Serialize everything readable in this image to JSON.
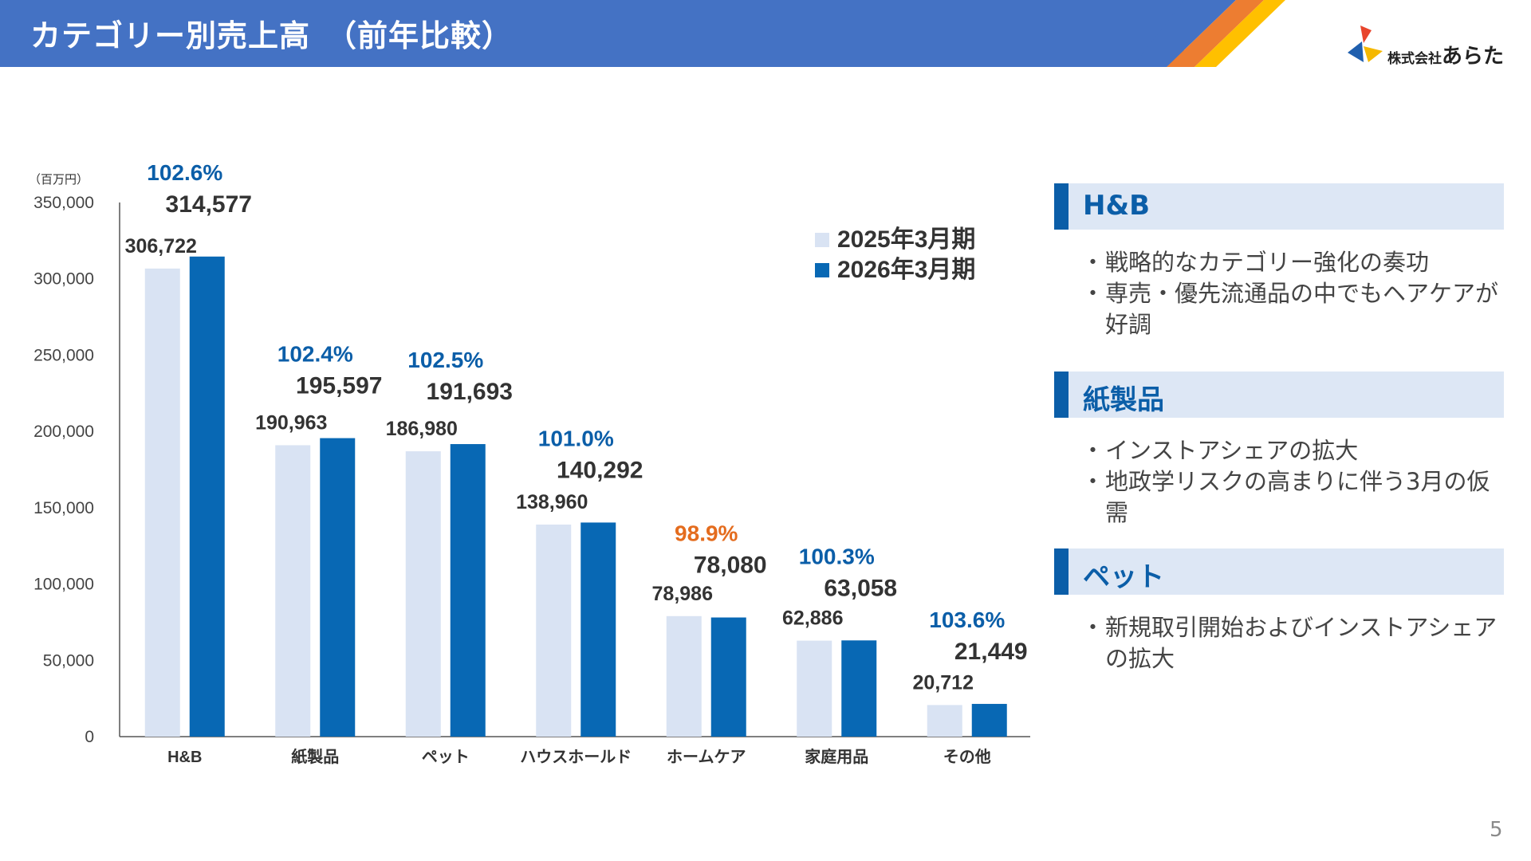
{
  "header": {
    "title": "カテゴリー別売上高　（前年比較）",
    "bar_color": "#4472c4",
    "stripe_colors": [
      "#ed7d31",
      "#ffc000"
    ]
  },
  "logo": {
    "prefix": "株式会社",
    "name": "あらた",
    "colors": [
      "#1f5fae",
      "#f5b800",
      "#e8452c"
    ]
  },
  "chart_data": {
    "type": "bar",
    "unit_label": "（百万円）",
    "categories": [
      "H&B",
      "紙製品",
      "ペット",
      "ハウスホールド",
      "ホームケア",
      "家庭用品",
      "その他"
    ],
    "series": [
      {
        "name": "2025年3月期",
        "values": [
          306722,
          190963,
          186980,
          138960,
          78986,
          62886,
          20712
        ],
        "color": "#d9e3f3"
      },
      {
        "name": "2026年3月期",
        "values": [
          314577,
          195597,
          191693,
          140292,
          78080,
          63058,
          21449
        ],
        "color": "#0868b4"
      }
    ],
    "value_labels": {
      "2025": [
        "306,722",
        "190,963",
        "186,980",
        "138,960",
        "78,986",
        "62,886",
        "20,712"
      ],
      "2026": [
        "314,577",
        "195,597",
        "191,693",
        "140,292",
        "78,080",
        "63,058",
        "21,449"
      ]
    },
    "yoy": [
      "102.6%",
      "102.4%",
      "102.5%",
      "101.0%",
      "98.9%",
      "100.3%",
      "103.6%"
    ],
    "yoy_colors": [
      "#0b5ea8",
      "#0b5ea8",
      "#0b5ea8",
      "#0b5ea8",
      "#e46c1e",
      "#0b5ea8",
      "#0b5ea8"
    ],
    "ylim": [
      0,
      350000
    ],
    "yticks": [
      0,
      50000,
      100000,
      150000,
      200000,
      250000,
      300000,
      350000
    ],
    "ytick_labels": [
      "0",
      "50,000",
      "100,000",
      "150,000",
      "200,000",
      "250,000",
      "300,000",
      "350,000"
    ],
    "legend_position": "top-right",
    "grid": false
  },
  "panels": [
    {
      "title": "H&B",
      "bullets": [
        "戦略的なカテゴリー強化の奏功",
        "専売・優先流通品の中でもヘアケアが好調"
      ]
    },
    {
      "title": "紙製品",
      "bullets": [
        "インストアシェアの拡大",
        "地政学リスクの高まりに伴う3月の仮需"
      ]
    },
    {
      "title": "ペット",
      "bullets": [
        "新規取引開始およびインストアシェアの拡大"
      ]
    }
  ],
  "page_number": "5"
}
